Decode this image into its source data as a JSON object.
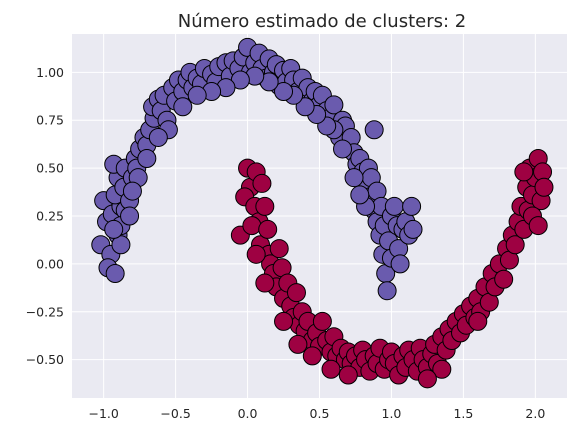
{
  "chart_data": {
    "type": "scatter",
    "title": "Número estimado de clusters: 2",
    "xlabel": "",
    "ylabel": "",
    "xlim": [
      -1.22,
      2.22
    ],
    "ylim": [
      -0.7,
      1.2
    ],
    "x_ticks": [
      -1.0,
      -0.5,
      0.0,
      0.5,
      1.0,
      1.5,
      2.0
    ],
    "x_tick_labels": [
      "−1.0",
      "−0.5",
      "0.0",
      "0.5",
      "1.0",
      "1.5",
      "2.0"
    ],
    "y_ticks": [
      -0.5,
      -0.25,
      0.0,
      0.25,
      0.5,
      0.75,
      1.0
    ],
    "y_tick_labels": [
      "−0.50",
      "−0.25",
      "0.00",
      "0.25",
      "0.50",
      "0.75",
      "1.00"
    ],
    "grid": true,
    "background_color": "#eaeaf2",
    "series": [
      {
        "color": "#6a5bae",
        "shape": "upper-moon",
        "points": [
          [
            -1.0,
            0.33
          ],
          [
            -0.98,
            0.22
          ],
          [
            -1.02,
            0.1
          ],
          [
            -0.95,
            0.05
          ],
          [
            -0.97,
            -0.02
          ],
          [
            -0.92,
            -0.05
          ],
          [
            -0.9,
            0.15
          ],
          [
            -0.94,
            0.26
          ],
          [
            -0.88,
            0.3
          ],
          [
            -0.92,
            0.36
          ],
          [
            -0.9,
            0.45
          ],
          [
            -0.93,
            0.52
          ],
          [
            -0.85,
            0.5
          ],
          [
            -0.86,
            0.4
          ],
          [
            -0.85,
            0.28
          ],
          [
            -0.88,
            0.2
          ],
          [
            -0.82,
            0.33
          ],
          [
            -0.8,
            0.45
          ],
          [
            -0.78,
            0.55
          ],
          [
            -0.75,
            0.6
          ],
          [
            -0.77,
            0.5
          ],
          [
            -0.72,
            0.66
          ],
          [
            -0.7,
            0.62
          ],
          [
            -0.68,
            0.7
          ],
          [
            -0.65,
            0.76
          ],
          [
            -0.66,
            0.82
          ],
          [
            -0.62,
            0.86
          ],
          [
            -0.6,
            0.8
          ],
          [
            -0.58,
            0.88
          ],
          [
            -0.56,
            0.75
          ],
          [
            -0.52,
            0.92
          ],
          [
            -0.5,
            0.85
          ],
          [
            -0.48,
            0.96
          ],
          [
            -0.45,
            0.9
          ],
          [
            -0.42,
            0.96
          ],
          [
            -0.4,
            1.0
          ],
          [
            -0.38,
            0.92
          ],
          [
            -0.35,
            0.97
          ],
          [
            -0.32,
            0.94
          ],
          [
            -0.3,
            1.02
          ],
          [
            -0.25,
            0.99
          ],
          [
            -0.22,
            0.95
          ],
          [
            -0.2,
            1.03
          ],
          [
            -0.15,
            1.05
          ],
          [
            -0.12,
            0.98
          ],
          [
            -0.1,
            1.06
          ],
          [
            -0.06,
            1.02
          ],
          [
            -0.03,
            1.08
          ],
          [
            0.0,
            1.13
          ],
          [
            0.02,
            1.0
          ],
          [
            0.05,
            1.05
          ],
          [
            0.08,
            1.1
          ],
          [
            0.1,
            1.02
          ],
          [
            0.13,
            0.97
          ],
          [
            0.15,
            1.07
          ],
          [
            0.18,
            1.0
          ],
          [
            0.2,
            1.04
          ],
          [
            0.22,
            0.93
          ],
          [
            0.25,
            1.01
          ],
          [
            0.27,
            0.95
          ],
          [
            0.3,
            1.02
          ],
          [
            0.32,
            0.96
          ],
          [
            0.35,
            0.9
          ],
          [
            0.38,
            0.97
          ],
          [
            0.4,
            0.88
          ],
          [
            0.42,
            0.92
          ],
          [
            0.45,
            0.85
          ],
          [
            0.47,
            0.9
          ],
          [
            0.5,
            0.83
          ],
          [
            0.52,
            0.88
          ],
          [
            0.55,
            0.8
          ],
          [
            0.57,
            0.76
          ],
          [
            0.6,
            0.83
          ],
          [
            0.62,
            0.7
          ],
          [
            0.64,
            0.66
          ],
          [
            0.66,
            0.75
          ],
          [
            0.68,
            0.72
          ],
          [
            0.7,
            0.6
          ],
          [
            0.72,
            0.66
          ],
          [
            0.74,
            0.58
          ],
          [
            0.76,
            0.52
          ],
          [
            0.78,
            0.55
          ],
          [
            0.8,
            0.48
          ],
          [
            0.82,
            0.4
          ],
          [
            0.84,
            0.5
          ],
          [
            0.85,
            0.35
          ],
          [
            0.86,
            0.45
          ],
          [
            0.88,
            0.28
          ],
          [
            0.88,
            0.7
          ],
          [
            0.9,
            0.22
          ],
          [
            0.9,
            0.38
          ],
          [
            0.92,
            0.15
          ],
          [
            0.93,
            0.3
          ],
          [
            0.94,
            0.05
          ],
          [
            0.95,
            0.2
          ],
          [
            0.96,
            -0.05
          ],
          [
            0.97,
            -0.14
          ],
          [
            0.98,
            0.12
          ],
          [
            1.0,
            0.25
          ],
          [
            1.0,
            0.03
          ],
          [
            1.02,
            0.3
          ],
          [
            1.04,
            0.2
          ],
          [
            1.05,
            0.08
          ],
          [
            1.06,
            0.0
          ],
          [
            1.08,
            0.18
          ],
          [
            1.1,
            0.22
          ],
          [
            1.12,
            0.15
          ],
          [
            1.14,
            0.3
          ],
          [
            1.15,
            0.18
          ],
          [
            0.82,
            0.3
          ],
          [
            0.78,
            0.36
          ],
          [
            0.74,
            0.45
          ],
          [
            0.66,
            0.6
          ],
          [
            0.6,
            0.7
          ],
          [
            0.55,
            0.72
          ],
          [
            0.48,
            0.78
          ],
          [
            0.4,
            0.82
          ],
          [
            0.32,
            0.88
          ],
          [
            0.25,
            0.9
          ],
          [
            0.15,
            0.95
          ],
          [
            0.05,
            0.98
          ],
          [
            -0.05,
            0.96
          ],
          [
            -0.15,
            0.92
          ],
          [
            -0.25,
            0.9
          ],
          [
            -0.35,
            0.88
          ],
          [
            -0.45,
            0.82
          ],
          [
            -0.55,
            0.7
          ],
          [
            -0.62,
            0.66
          ],
          [
            -0.7,
            0.55
          ],
          [
            -0.76,
            0.45
          ],
          [
            -0.8,
            0.38
          ],
          [
            -0.82,
            0.25
          ],
          [
            -0.88,
            0.1
          ],
          [
            -0.93,
            0.18
          ]
        ]
      },
      {
        "color": "#9e0142",
        "shape": "lower-moon",
        "points": [
          [
            -0.05,
            0.15
          ],
          [
            0.0,
            0.5
          ],
          [
            0.02,
            0.4
          ],
          [
            -0.02,
            0.35
          ],
          [
            0.05,
            0.3
          ],
          [
            0.06,
            0.48
          ],
          [
            0.08,
            0.22
          ],
          [
            0.1,
            0.42
          ],
          [
            0.03,
            0.2
          ],
          [
            0.09,
            0.1
          ],
          [
            0.12,
            0.3
          ],
          [
            0.14,
            0.18
          ],
          [
            0.15,
            0.05
          ],
          [
            0.16,
            0.0
          ],
          [
            0.18,
            -0.05
          ],
          [
            0.2,
            -0.12
          ],
          [
            0.22,
            0.08
          ],
          [
            0.24,
            -0.02
          ],
          [
            0.25,
            -0.18
          ],
          [
            0.28,
            -0.1
          ],
          [
            0.3,
            -0.22
          ],
          [
            0.32,
            -0.28
          ],
          [
            0.34,
            -0.15
          ],
          [
            0.36,
            -0.32
          ],
          [
            0.38,
            -0.25
          ],
          [
            0.4,
            -0.35
          ],
          [
            0.42,
            -0.3
          ],
          [
            0.45,
            -0.4
          ],
          [
            0.48,
            -0.36
          ],
          [
            0.5,
            -0.43
          ],
          [
            0.52,
            -0.3
          ],
          [
            0.55,
            -0.4
          ],
          [
            0.58,
            -0.46
          ],
          [
            0.6,
            -0.38
          ],
          [
            0.62,
            -0.48
          ],
          [
            0.65,
            -0.44
          ],
          [
            0.68,
            -0.5
          ],
          [
            0.7,
            -0.46
          ],
          [
            0.72,
            -0.52
          ],
          [
            0.75,
            -0.48
          ],
          [
            0.78,
            -0.54
          ],
          [
            0.8,
            -0.45
          ],
          [
            0.82,
            -0.5
          ],
          [
            0.85,
            -0.56
          ],
          [
            0.88,
            -0.48
          ],
          [
            0.9,
            -0.52
          ],
          [
            0.92,
            -0.44
          ],
          [
            0.95,
            -0.55
          ],
          [
            0.98,
            -0.5
          ],
          [
            1.0,
            -0.46
          ],
          [
            1.02,
            -0.52
          ],
          [
            1.05,
            -0.58
          ],
          [
            1.08,
            -0.48
          ],
          [
            1.1,
            -0.54
          ],
          [
            1.12,
            -0.45
          ],
          [
            1.15,
            -0.5
          ],
          [
            1.18,
            -0.56
          ],
          [
            1.2,
            -0.44
          ],
          [
            1.22,
            -0.5
          ],
          [
            1.25,
            -0.54
          ],
          [
            1.28,
            -0.47
          ],
          [
            1.3,
            -0.42
          ],
          [
            1.32,
            -0.52
          ],
          [
            1.35,
            -0.38
          ],
          [
            1.38,
            -0.45
          ],
          [
            1.4,
            -0.34
          ],
          [
            1.42,
            -0.4
          ],
          [
            1.45,
            -0.3
          ],
          [
            1.48,
            -0.36
          ],
          [
            1.5,
            -0.26
          ],
          [
            1.52,
            -0.32
          ],
          [
            1.55,
            -0.22
          ],
          [
            1.58,
            -0.28
          ],
          [
            1.6,
            -0.18
          ],
          [
            1.62,
            -0.25
          ],
          [
            1.65,
            -0.12
          ],
          [
            1.68,
            -0.2
          ],
          [
            1.7,
            -0.05
          ],
          [
            1.72,
            -0.12
          ],
          [
            1.75,
            0.0
          ],
          [
            1.78,
            -0.08
          ],
          [
            1.8,
            0.08
          ],
          [
            1.82,
            0.02
          ],
          [
            1.84,
            0.15
          ],
          [
            1.86,
            0.1
          ],
          [
            1.88,
            0.22
          ],
          [
            1.9,
            0.3
          ],
          [
            1.92,
            0.18
          ],
          [
            1.94,
            0.4
          ],
          [
            1.95,
            0.28
          ],
          [
            1.96,
            0.5
          ],
          [
            1.98,
            0.36
          ],
          [
            2.0,
            0.45
          ],
          [
            2.02,
            0.55
          ],
          [
            2.04,
            0.33
          ],
          [
            2.05,
            0.48
          ],
          [
            2.06,
            0.4
          ],
          [
            1.98,
            0.25
          ],
          [
            1.92,
            0.48
          ],
          [
            2.02,
            0.2
          ],
          [
            0.45,
            -0.48
          ],
          [
            0.58,
            -0.55
          ],
          [
            0.7,
            -0.58
          ],
          [
            1.35,
            -0.55
          ],
          [
            1.6,
            -0.3
          ],
          [
            1.25,
            -0.6
          ],
          [
            0.35,
            -0.42
          ],
          [
            0.25,
            -0.3
          ],
          [
            0.12,
            -0.1
          ],
          [
            0.06,
            0.05
          ]
        ]
      }
    ]
  }
}
